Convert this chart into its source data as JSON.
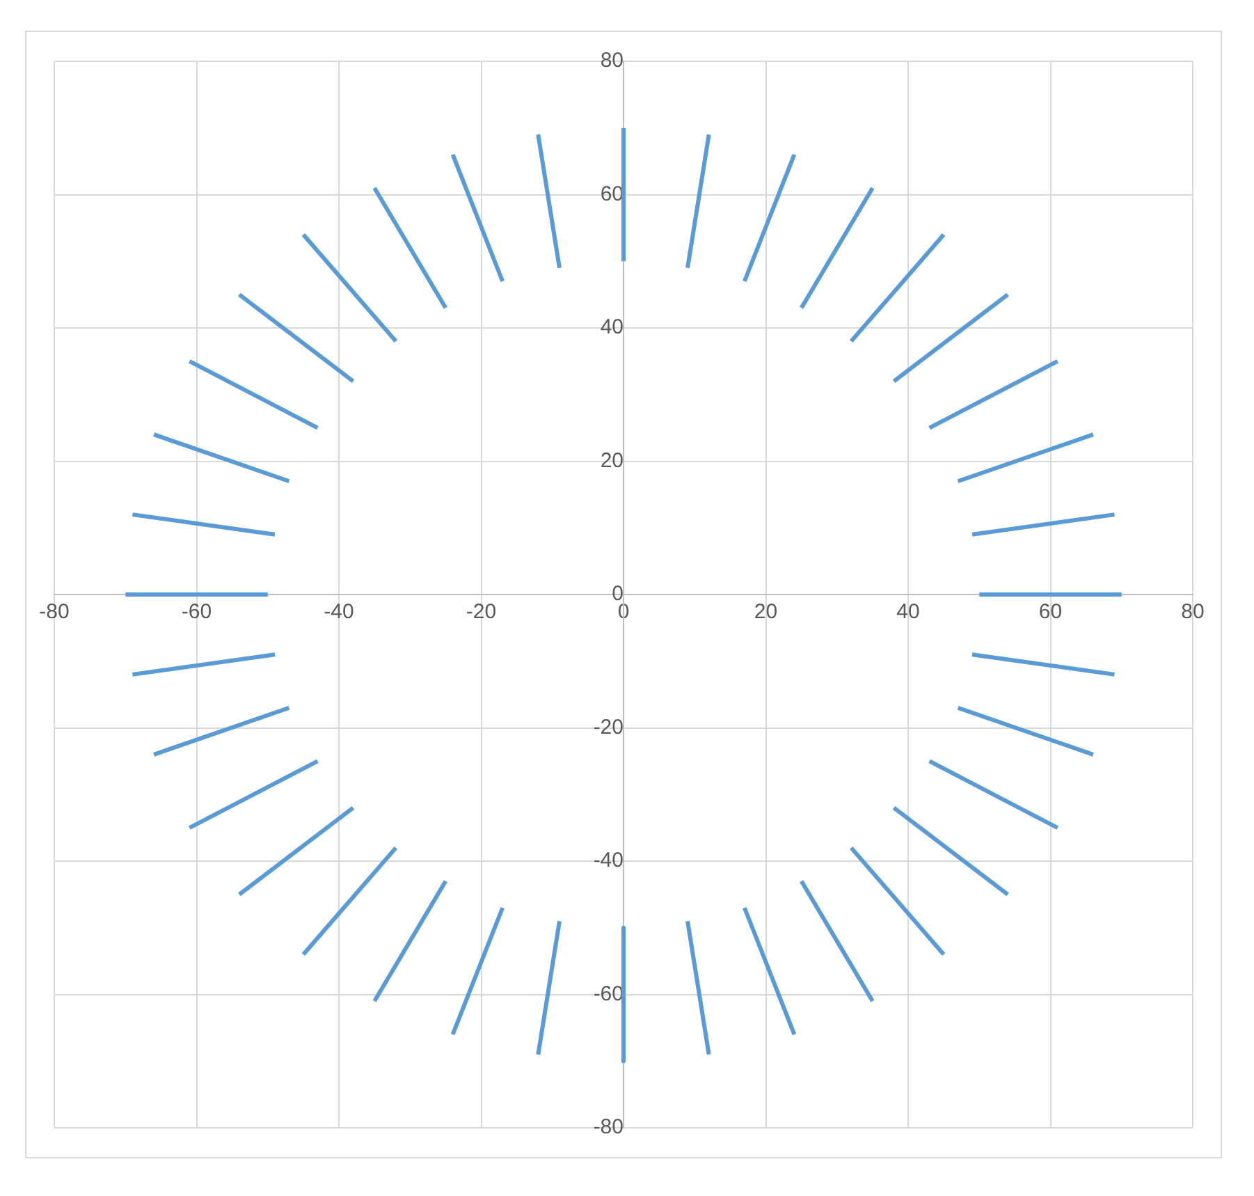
{
  "chart_data": {
    "type": "line",
    "xlim": [
      -80,
      80
    ],
    "ylim": [
      -80,
      80
    ],
    "xticks": [
      -80,
      -60,
      -40,
      -20,
      0,
      20,
      40,
      60,
      80
    ],
    "yticks": [
      -80,
      -60,
      -40,
      -20,
      0,
      20,
      40,
      60,
      80
    ],
    "grid": true,
    "legend": false,
    "marker": "none",
    "line_style": "solid",
    "series": [
      {
        "type": "line",
        "color": "#5b9bd5",
        "x": [
          50,
          70
        ],
        "values": [
          0,
          0
        ]
      },
      {
        "type": "line",
        "color": "#5b9bd5",
        "x": [
          49,
          69
        ],
        "values": [
          9,
          12
        ]
      },
      {
        "type": "line",
        "color": "#5b9bd5",
        "x": [
          47,
          66
        ],
        "values": [
          17,
          24
        ]
      },
      {
        "type": "line",
        "color": "#5b9bd5",
        "x": [
          43,
          61
        ],
        "values": [
          25,
          35
        ]
      },
      {
        "type": "line",
        "color": "#5b9bd5",
        "x": [
          38,
          54
        ],
        "values": [
          32,
          45
        ]
      },
      {
        "type": "line",
        "color": "#5b9bd5",
        "x": [
          32,
          45
        ],
        "values": [
          38,
          54
        ]
      },
      {
        "type": "line",
        "color": "#5b9bd5",
        "x": [
          25,
          35
        ],
        "values": [
          43,
          61
        ]
      },
      {
        "type": "line",
        "color": "#5b9bd5",
        "x": [
          17,
          24
        ],
        "values": [
          47,
          66
        ]
      },
      {
        "type": "line",
        "color": "#5b9bd5",
        "x": [
          9,
          12
        ],
        "values": [
          49,
          69
        ]
      },
      {
        "type": "line",
        "color": "#5b9bd5",
        "x": [
          0,
          0
        ],
        "values": [
          50,
          70
        ]
      },
      {
        "type": "line",
        "color": "#5b9bd5",
        "x": [
          -9,
          -12
        ],
        "values": [
          49,
          69
        ]
      },
      {
        "type": "line",
        "color": "#5b9bd5",
        "x": [
          -17,
          -24
        ],
        "values": [
          47,
          66
        ]
      },
      {
        "type": "line",
        "color": "#5b9bd5",
        "x": [
          -25,
          -35
        ],
        "values": [
          43,
          61
        ]
      },
      {
        "type": "line",
        "color": "#5b9bd5",
        "x": [
          -32,
          -45
        ],
        "values": [
          38,
          54
        ]
      },
      {
        "type": "line",
        "color": "#5b9bd5",
        "x": [
          -38,
          -54
        ],
        "values": [
          32,
          45
        ]
      },
      {
        "type": "line",
        "color": "#5b9bd5",
        "x": [
          -43,
          -61
        ],
        "values": [
          25,
          35
        ]
      },
      {
        "type": "line",
        "color": "#5b9bd5",
        "x": [
          -47,
          -66
        ],
        "values": [
          17,
          24
        ]
      },
      {
        "type": "line",
        "color": "#5b9bd5",
        "x": [
          -49,
          -69
        ],
        "values": [
          9,
          12
        ]
      },
      {
        "type": "line",
        "color": "#5b9bd5",
        "x": [
          -50,
          -70
        ],
        "values": [
          0,
          0
        ]
      },
      {
        "type": "line",
        "color": "#5b9bd5",
        "x": [
          -49,
          -69
        ],
        "values": [
          -9,
          -12
        ]
      },
      {
        "type": "line",
        "color": "#5b9bd5",
        "x": [
          -47,
          -66
        ],
        "values": [
          -17,
          -24
        ]
      },
      {
        "type": "line",
        "color": "#5b9bd5",
        "x": [
          -43,
          -61
        ],
        "values": [
          -25,
          -35
        ]
      },
      {
        "type": "line",
        "color": "#5b9bd5",
        "x": [
          -38,
          -54
        ],
        "values": [
          -32,
          -45
        ]
      },
      {
        "type": "line",
        "color": "#5b9bd5",
        "x": [
          -32,
          -45
        ],
        "values": [
          -38,
          -54
        ]
      },
      {
        "type": "line",
        "color": "#5b9bd5",
        "x": [
          -25,
          -35
        ],
        "values": [
          -43,
          -61
        ]
      },
      {
        "type": "line",
        "color": "#5b9bd5",
        "x": [
          -17,
          -24
        ],
        "values": [
          -47,
          -66
        ]
      },
      {
        "type": "line",
        "color": "#5b9bd5",
        "x": [
          -9,
          -12
        ],
        "values": [
          -49,
          -69
        ]
      },
      {
        "type": "line",
        "color": "#5b9bd5",
        "x": [
          0,
          0
        ],
        "values": [
          -50,
          -70
        ]
      },
      {
        "type": "line",
        "color": "#5b9bd5",
        "x": [
          9,
          12
        ],
        "values": [
          -49,
          -69
        ]
      },
      {
        "type": "line",
        "color": "#5b9bd5",
        "x": [
          17,
          24
        ],
        "values": [
          -47,
          -66
        ]
      },
      {
        "type": "line",
        "color": "#5b9bd5",
        "x": [
          25,
          35
        ],
        "values": [
          -43,
          -61
        ]
      },
      {
        "type": "line",
        "color": "#5b9bd5",
        "x": [
          32,
          45
        ],
        "values": [
          -38,
          -54
        ]
      },
      {
        "type": "line",
        "color": "#5b9bd5",
        "x": [
          38,
          54
        ],
        "values": [
          -32,
          -45
        ]
      },
      {
        "type": "line",
        "color": "#5b9bd5",
        "x": [
          43,
          61
        ],
        "values": [
          -25,
          -35
        ]
      },
      {
        "type": "line",
        "color": "#5b9bd5",
        "x": [
          47,
          66
        ],
        "values": [
          -17,
          -24
        ]
      },
      {
        "type": "line",
        "color": "#5b9bd5",
        "x": [
          49,
          69
        ],
        "values": [
          -9,
          -12
        ]
      }
    ]
  }
}
